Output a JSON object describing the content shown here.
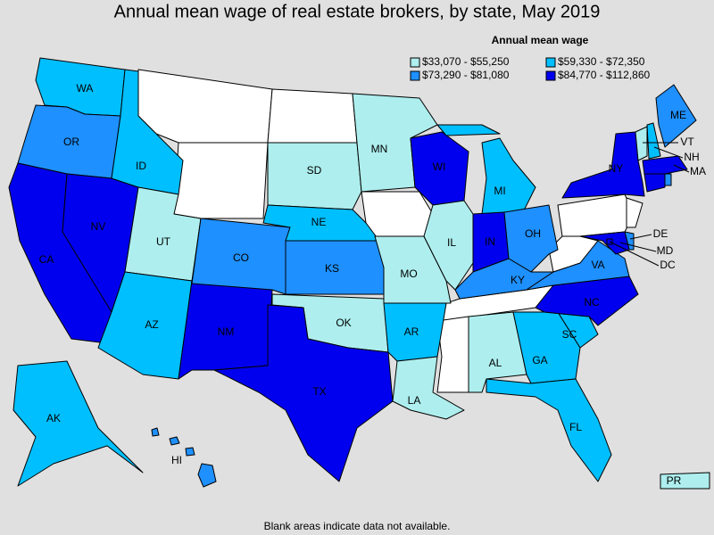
{
  "title": "Annual mean wage of real estate brokers, by state, May 2019",
  "legend": {
    "title": "Annual mean wage",
    "items": [
      {
        "label": "$33,070 - $55,250",
        "color": "#aeeeee"
      },
      {
        "label": "$59,330 - $72,350",
        "color": "#00bfff"
      },
      {
        "label": "$73,290 - $81,080",
        "color": "#1e90ff"
      },
      {
        "label": "$84,770 - $112,860",
        "color": "#0000ee"
      }
    ]
  },
  "states": [
    {
      "label": "WA",
      "class": 1
    },
    {
      "label": "OR",
      "class": 2
    },
    {
      "label": "CA",
      "class": 3
    },
    {
      "label": "NV",
      "class": 3
    },
    {
      "label": "ID",
      "class": 1
    },
    {
      "label": "UT",
      "class": 0
    },
    {
      "label": "AZ",
      "class": 1
    },
    {
      "label": "NM",
      "class": 3
    },
    {
      "label": "CO",
      "class": 2
    },
    {
      "label": "SD",
      "class": 0
    },
    {
      "label": "NE",
      "class": 1
    },
    {
      "label": "KS",
      "class": 2
    },
    {
      "label": "OK",
      "class": 0
    },
    {
      "label": "TX",
      "class": 3
    },
    {
      "label": "MN",
      "class": 0
    },
    {
      "label": "MO",
      "class": 0
    },
    {
      "label": "AR",
      "class": 1
    },
    {
      "label": "LA",
      "class": 0
    },
    {
      "label": "WI",
      "class": 3
    },
    {
      "label": "IL",
      "class": 0
    },
    {
      "label": "MI",
      "class": 1
    },
    {
      "label": "IN",
      "class": 3
    },
    {
      "label": "OH",
      "class": 2
    },
    {
      "label": "KY",
      "class": 2
    },
    {
      "label": "AL",
      "class": 0
    },
    {
      "label": "GA",
      "class": 1
    },
    {
      "label": "FL",
      "class": 1
    },
    {
      "label": "SC",
      "class": 1
    },
    {
      "label": "NC",
      "class": 3
    },
    {
      "label": "VA",
      "class": 2
    },
    {
      "label": "NY",
      "class": 3
    },
    {
      "label": "VT",
      "class": 0
    },
    {
      "label": "NH",
      "class": 1
    },
    {
      "label": "ME",
      "class": 2
    },
    {
      "label": "MA",
      "class": 3
    },
    {
      "label": "DE",
      "class": 2
    },
    {
      "label": "MD",
      "class": 3
    },
    {
      "label": "DC",
      "class": 3
    },
    {
      "label": "AK",
      "class": 1
    },
    {
      "label": "HI",
      "class": 2
    },
    {
      "label": "PR",
      "class": 0
    },
    {
      "label": null,
      "class": 3
    },
    {
      "label": null,
      "class": 2
    }
  ],
  "note": "Blank areas indicate data not available."
}
